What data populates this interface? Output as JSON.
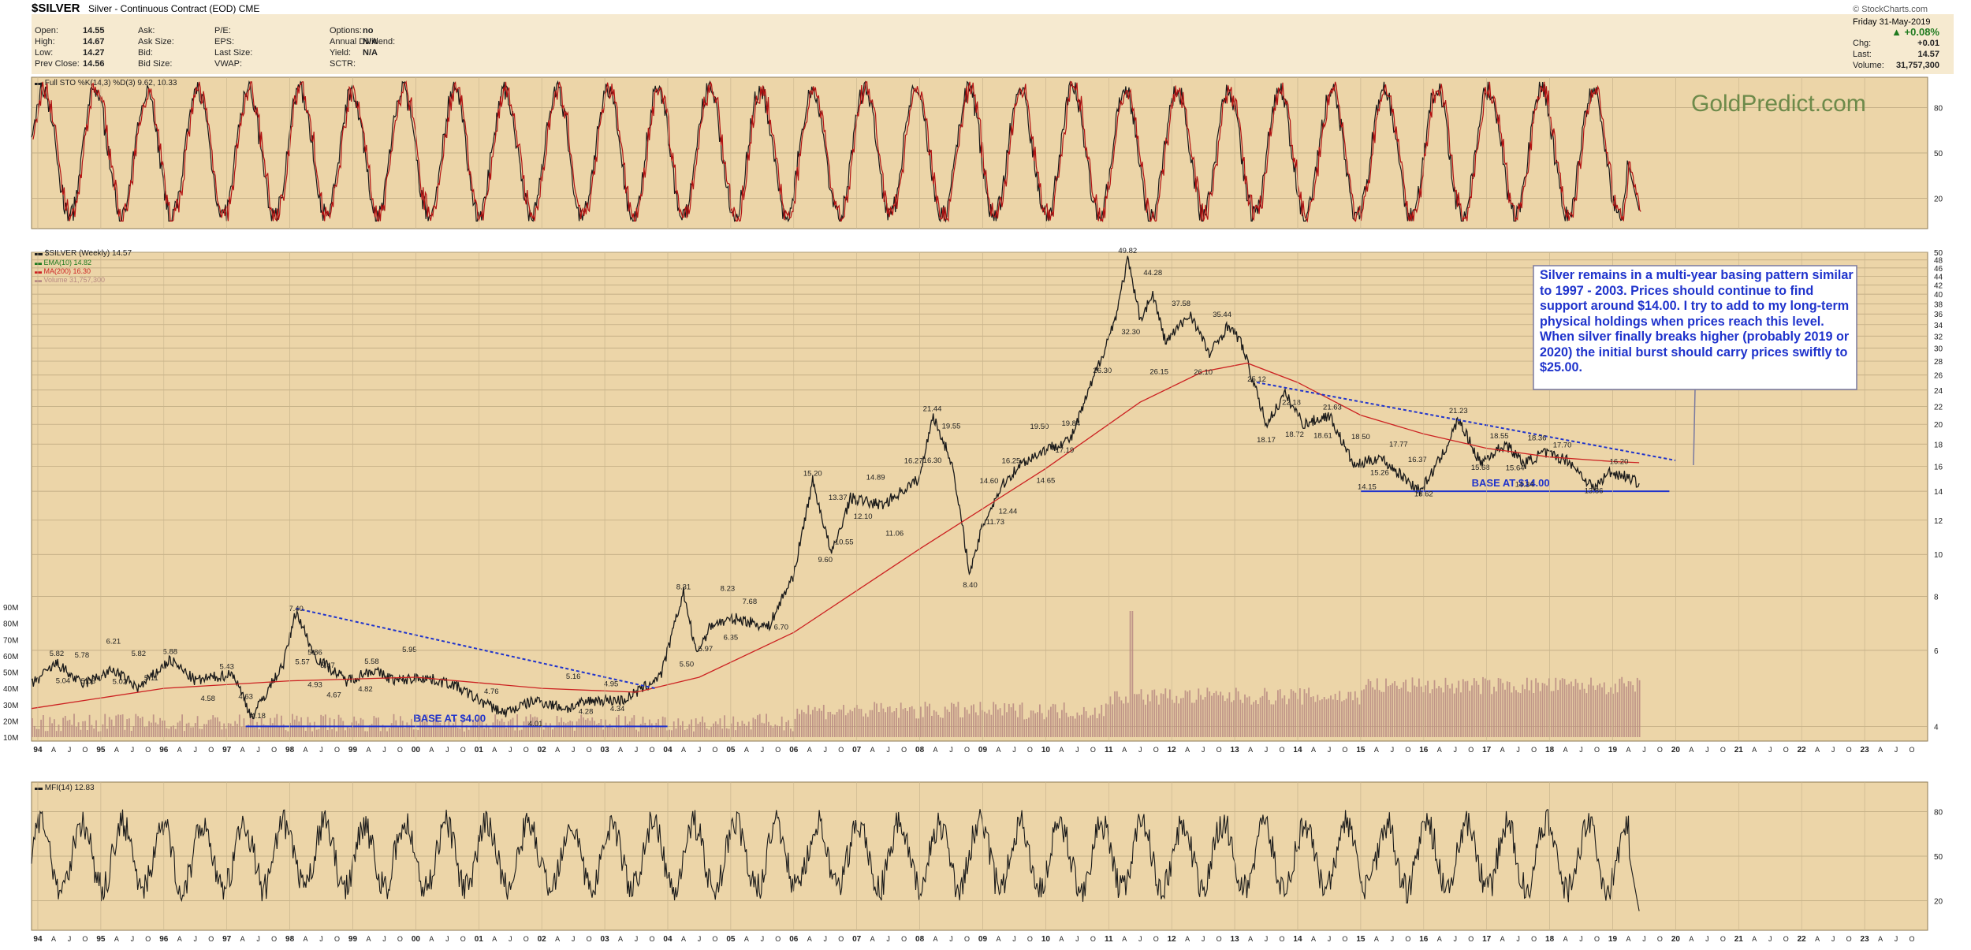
{
  "header": {
    "symbol": "$SILVER",
    "description": "Silver - Continuous Contract (EOD) CME",
    "date": "Friday  31-May-2019",
    "change_pct": "▲ +0.08%",
    "watermark": "© StockCharts.com",
    "quote_left": [
      {
        "label": "Open:",
        "value": "14.55"
      },
      {
        "label": "High:",
        "value": "14.67"
      },
      {
        "label": "Low:",
        "value": "14.27"
      },
      {
        "label": "Prev Close:",
        "value": "14.56"
      }
    ],
    "quote_mid": [
      {
        "label": "Ask:",
        "value": ""
      },
      {
        "label": "Ask Size:",
        "value": ""
      },
      {
        "label": "Bid:",
        "value": ""
      },
      {
        "label": "Bid Size:",
        "value": ""
      }
    ],
    "quote_mid2": [
      {
        "label": "P/E:",
        "value": ""
      },
      {
        "label": "EPS:",
        "value": ""
      },
      {
        "label": "Last Size:",
        "value": ""
      },
      {
        "label": "VWAP:",
        "value": ""
      }
    ],
    "quote_right": [
      {
        "label": "Options:",
        "value": "no"
      },
      {
        "label": "Annual Dividend:",
        "value": "N/A"
      },
      {
        "label": "Yield:",
        "value": "N/A"
      },
      {
        "label": "SCTR:",
        "value": ""
      }
    ],
    "quote_far": [
      {
        "label": "Chg:",
        "value": "+0.01"
      },
      {
        "label": "Last:",
        "value": "14.57"
      },
      {
        "label": "Volume:",
        "value": "31,757,300"
      }
    ]
  },
  "brand": "GoldPredict.com",
  "commentary": "Silver remains in a multi-year basing pattern similar to 1997 - 2003. Prices should continue to find support around $14.00. I try to add to my long-term physical holdings when prices reach this level. When silver finally breaks higher (probably 2019 or 2020) the initial burst should carry prices swiftly to $25.00.",
  "colors": {
    "panel_bg": "#ecd5a8",
    "price_line": "#1a1a1a",
    "osc_line": "#b31212",
    "ema": "#1f7a1f",
    "ma": "#cc2222",
    "trend": "#1f33cc",
    "volume": "#b88a83"
  },
  "chart_data": [
    {
      "type": "line",
      "panel": "stochastics",
      "legend": "Full STO %K(14,3) %D(3) 9.62, 10.33",
      "y_ticks": [
        80,
        50,
        20
      ],
      "ylim": [
        0,
        100
      ],
      "last_values": {
        "k": 9.62,
        "d": 10.33
      }
    },
    {
      "type": "line",
      "panel": "price",
      "title": "$SILVER (Weekly) 14.57",
      "legend": [
        {
          "name": "EMA(10) 14.82",
          "color": "#1f7a1f"
        },
        {
          "name": "MA(200) 16.30",
          "color": "#cc2222"
        },
        {
          "name": "Volume 31,757,300",
          "color": "#b88a83"
        }
      ],
      "scale": "log",
      "ylim": [
        3.7,
        50
      ],
      "y_ticks": [
        4,
        6,
        8,
        10,
        12,
        14,
        16,
        18,
        20,
        22,
        24,
        26,
        28,
        30,
        32,
        34,
        36,
        38,
        40,
        42,
        44,
        46,
        48,
        50
      ],
      "volume_ticks": [
        "90M",
        "80M",
        "70M",
        "60M",
        "50M",
        "40M",
        "30M",
        "20M",
        "10M"
      ],
      "x": [
        1993.9,
        1994.3,
        1994.7,
        1995.2,
        1995.6,
        1996.1,
        1996.5,
        1997.1,
        1997.4,
        1997.9,
        1998.1,
        1998.4,
        1998.9,
        1999.3,
        1999.7,
        2000.1,
        2000.6,
        2001.0,
        2001.4,
        2001.9,
        2002.4,
        2002.8,
        2003.3,
        2003.7,
        2003.9,
        2004.25,
        2004.45,
        2004.7,
        2005.1,
        2005.6,
        2006.0,
        2006.3,
        2006.6,
        2006.9,
        2007.4,
        2007.8,
        2008.0,
        2008.2,
        2008.5,
        2008.8,
        2009.0,
        2009.3,
        2009.6,
        2010.0,
        2010.4,
        2010.9,
        2011.1,
        2011.3,
        2011.5,
        2011.7,
        2011.9,
        2012.3,
        2012.6,
        2012.9,
        2013.1,
        2013.5,
        2013.8,
        2014.1,
        2014.5,
        2014.9,
        2015.3,
        2015.7,
        2015.95,
        2016.3,
        2016.55,
        2016.9,
        2017.3,
        2017.6,
        2017.9,
        2018.3,
        2018.7,
        2018.95,
        2019.2,
        2019.42
      ],
      "y": [
        5.0,
        5.6,
        5.0,
        5.4,
        4.9,
        5.7,
        5.1,
        5.3,
        4.2,
        5.6,
        7.4,
        5.8,
        5.1,
        5.4,
        5.1,
        5.2,
        5.0,
        4.6,
        4.3,
        4.6,
        4.4,
        4.6,
        4.6,
        5.0,
        5.3,
        8.2,
        5.9,
        6.9,
        7.1,
        6.8,
        9.0,
        14.8,
        10.0,
        13.5,
        13.0,
        14.3,
        15.0,
        21.0,
        16.5,
        9.0,
        11.7,
        14.4,
        16.2,
        17.5,
        18.5,
        29.0,
        35.0,
        48.0,
        35.0,
        40.0,
        31.0,
        36.0,
        29.0,
        34.0,
        31.0,
        20.0,
        23.5,
        20.0,
        21.0,
        16.0,
        16.8,
        15.0,
        14.0,
        17.0,
        20.5,
        16.3,
        18.0,
        16.2,
        17.2,
        16.5,
        14.2,
        15.5,
        15.2,
        14.6
      ],
      "ma200": {
        "x": [
          1993.9,
          1996.0,
          1998.0,
          2000.0,
          2002.0,
          2003.5,
          2004.5,
          2006.0,
          2008.0,
          2010.0,
          2011.5,
          2012.5,
          2013.2,
          2014.0,
          2015.0,
          2016.0,
          2017.0,
          2018.0,
          2019.0,
          2019.42
        ],
        "y": [
          4.4,
          4.9,
          5.1,
          5.2,
          4.9,
          4.8,
          5.2,
          6.6,
          10.3,
          15.8,
          22.5,
          26.5,
          27.7,
          25.0,
          21.0,
          19.0,
          17.6,
          16.8,
          16.4,
          16.3
        ]
      },
      "annotations": [
        {
          "x": 1994.3,
          "y": 5.82,
          "text": "5.82"
        },
        {
          "x": 1994.4,
          "y": 5.04,
          "text": "5.04"
        },
        {
          "x": 1994.7,
          "y": 5.78,
          "text": "5.78"
        },
        {
          "x": 1994.8,
          "y": 5.03,
          "text": "5.03"
        },
        {
          "x": 1995.2,
          "y": 6.21,
          "text": "6.21"
        },
        {
          "x": 1995.3,
          "y": 5.02,
          "text": "5.02"
        },
        {
          "x": 1995.6,
          "y": 5.82,
          "text": "5.82"
        },
        {
          "x": 1995.8,
          "y": 5.11,
          "text": "5.11"
        },
        {
          "x": 1996.1,
          "y": 5.88,
          "text": "5.88"
        },
        {
          "x": 1996.7,
          "y": 4.58,
          "text": "4.58"
        },
        {
          "x": 1997.0,
          "y": 5.43,
          "text": "5.43"
        },
        {
          "x": 1997.3,
          "y": 4.63,
          "text": "4.63"
        },
        {
          "x": 1997.5,
          "y": 4.18,
          "text": "4.18"
        },
        {
          "x": 1998.1,
          "y": 7.4,
          "text": "7.40"
        },
        {
          "x": 1998.2,
          "y": 5.57,
          "text": "5.57"
        },
        {
          "x": 1998.4,
          "y": 5.86,
          "text": "5.86"
        },
        {
          "x": 1998.6,
          "y": 5.47,
          "text": "5.47"
        },
        {
          "x": 1998.4,
          "y": 4.93,
          "text": "4.93"
        },
        {
          "x": 1998.7,
          "y": 4.67,
          "text": "4.67"
        },
        {
          "x": 1999.3,
          "y": 5.58,
          "text": "5.58"
        },
        {
          "x": 1999.2,
          "y": 4.82,
          "text": "4.82"
        },
        {
          "x": 1999.9,
          "y": 5.95,
          "text": "5.95"
        },
        {
          "x": 2001.2,
          "y": 4.76,
          "text": "4.76"
        },
        {
          "x": 2001.9,
          "y": 4.01,
          "text": "4.01"
        },
        {
          "x": 2002.5,
          "y": 5.16,
          "text": "5.16"
        },
        {
          "x": 2002.7,
          "y": 4.28,
          "text": "4.28"
        },
        {
          "x": 2003.1,
          "y": 4.95,
          "text": "4.95"
        },
        {
          "x": 2003.2,
          "y": 4.34,
          "text": "4.34"
        },
        {
          "x": 2004.25,
          "y": 8.31,
          "text": "8.31"
        },
        {
          "x": 2004.3,
          "y": 5.5,
          "text": "5.50"
        },
        {
          "x": 2004.6,
          "y": 5.97,
          "text": "5.97"
        },
        {
          "x": 2004.95,
          "y": 8.23,
          "text": "8.23"
        },
        {
          "x": 2005.0,
          "y": 6.35,
          "text": "6.35"
        },
        {
          "x": 2005.3,
          "y": 7.68,
          "text": "7.68"
        },
        {
          "x": 2005.8,
          "y": 6.7,
          "text": "6.70"
        },
        {
          "x": 2006.3,
          "y": 15.2,
          "text": "15.20"
        },
        {
          "x": 2006.5,
          "y": 9.6,
          "text": "9.60"
        },
        {
          "x": 2006.7,
          "y": 13.37,
          "text": "13.37"
        },
        {
          "x": 2006.8,
          "y": 10.55,
          "text": "10.55"
        },
        {
          "x": 2007.1,
          "y": 12.1,
          "text": "12.10"
        },
        {
          "x": 2007.3,
          "y": 14.89,
          "text": "14.89"
        },
        {
          "x": 2007.6,
          "y": 11.06,
          "text": "11.06"
        },
        {
          "x": 2007.9,
          "y": 16.27,
          "text": "16.27"
        },
        {
          "x": 2008.2,
          "y": 21.44,
          "text": "21.44"
        },
        {
          "x": 2008.2,
          "y": 16.3,
          "text": "16.30"
        },
        {
          "x": 2008.5,
          "y": 19.55,
          "text": "19.55"
        },
        {
          "x": 2008.8,
          "y": 8.4,
          "text": "8.40"
        },
        {
          "x": 2009.1,
          "y": 14.6,
          "text": "14.60"
        },
        {
          "x": 2009.2,
          "y": 11.73,
          "text": "11.73"
        },
        {
          "x": 2009.4,
          "y": 12.44,
          "text": "12.44"
        },
        {
          "x": 2009.45,
          "y": 16.25,
          "text": "16.25"
        },
        {
          "x": 2009.9,
          "y": 19.5,
          "text": "19.50"
        },
        {
          "x": 2010.0,
          "y": 14.65,
          "text": "14.65"
        },
        {
          "x": 2010.4,
          "y": 19.84,
          "text": "19.84"
        },
        {
          "x": 2010.3,
          "y": 17.19,
          "text": "17.19"
        },
        {
          "x": 2010.9,
          "y": 26.3,
          "text": "26.30"
        },
        {
          "x": 2011.3,
          "y": 49.82,
          "text": "49.82"
        },
        {
          "x": 2011.35,
          "y": 32.3,
          "text": "32.30"
        },
        {
          "x": 2011.7,
          "y": 44.28,
          "text": "44.28"
        },
        {
          "x": 2011.8,
          "y": 26.15,
          "text": "26.15"
        },
        {
          "x": 2012.15,
          "y": 37.58,
          "text": "37.58"
        },
        {
          "x": 2012.5,
          "y": 26.1,
          "text": "26.10"
        },
        {
          "x": 2012.8,
          "y": 35.44,
          "text": "35.44"
        },
        {
          "x": 2013.35,
          "y": 25.12,
          "text": "25.12"
        },
        {
          "x": 2013.5,
          "y": 18.17,
          "text": "18.17"
        },
        {
          "x": 2013.9,
          "y": 22.18,
          "text": "22.18"
        },
        {
          "x": 2013.95,
          "y": 18.72,
          "text": "18.72"
        },
        {
          "x": 2014.4,
          "y": 18.61,
          "text": "18.61"
        },
        {
          "x": 2014.55,
          "y": 21.63,
          "text": "21.63"
        },
        {
          "x": 2015.0,
          "y": 18.5,
          "text": "18.50"
        },
        {
          "x": 2015.1,
          "y": 14.15,
          "text": "14.15"
        },
        {
          "x": 2015.3,
          "y": 15.26,
          "text": "15.26"
        },
        {
          "x": 2015.6,
          "y": 17.77,
          "text": "17.77"
        },
        {
          "x": 2015.9,
          "y": 16.37,
          "text": "16.37"
        },
        {
          "x": 2016.0,
          "y": 13.62,
          "text": "13.62"
        },
        {
          "x": 2016.55,
          "y": 21.23,
          "text": "21.23"
        },
        {
          "x": 2016.9,
          "y": 15.68,
          "text": "15.68"
        },
        {
          "x": 2017.2,
          "y": 18.55,
          "text": "18.55"
        },
        {
          "x": 2017.45,
          "y": 15.64,
          "text": "15.64"
        },
        {
          "x": 2017.6,
          "y": 14.34,
          "text": "14.34"
        },
        {
          "x": 2017.8,
          "y": 18.36,
          "text": "18.36"
        },
        {
          "x": 2018.2,
          "y": 17.7,
          "text": "17.70"
        },
        {
          "x": 2018.7,
          "y": 13.86,
          "text": "13.86"
        },
        {
          "x": 2019.1,
          "y": 16.2,
          "text": "16.20"
        }
      ],
      "base_lines": [
        {
          "x1": 1997.3,
          "x2": 2004.0,
          "y": 4.0,
          "text": "BASE AT $4.00"
        },
        {
          "x1": 2015.0,
          "x2": 2019.9,
          "y": 14.0,
          "text": "BASE AT $14.00"
        }
      ],
      "trend_lines": [
        {
          "x1": 1998.1,
          "y1": 7.5,
          "x2": 2003.8,
          "y2": 4.9
        },
        {
          "x1": 2013.35,
          "y1": 25.0,
          "x2": 2020.0,
          "y2": 16.5
        }
      ]
    },
    {
      "type": "line",
      "panel": "mfi",
      "legend": "MFI(14) 12.83",
      "y_ticks": [
        80,
        50,
        20
      ],
      "ylim": [
        0,
        100
      ],
      "last_value": 12.83
    }
  ],
  "x_axis": {
    "x_start": 1993.9,
    "x_end": 2024.0,
    "year_labels": [
      "94",
      "95",
      "96",
      "97",
      "98",
      "99",
      "00",
      "01",
      "02",
      "03",
      "04",
      "05",
      "06",
      "07",
      "08",
      "09",
      "10",
      "11",
      "12",
      "13",
      "14",
      "15",
      "16",
      "17",
      "18",
      "19",
      "20",
      "21",
      "22",
      "23"
    ],
    "month_labels": [
      "A",
      "J",
      "O"
    ]
  }
}
